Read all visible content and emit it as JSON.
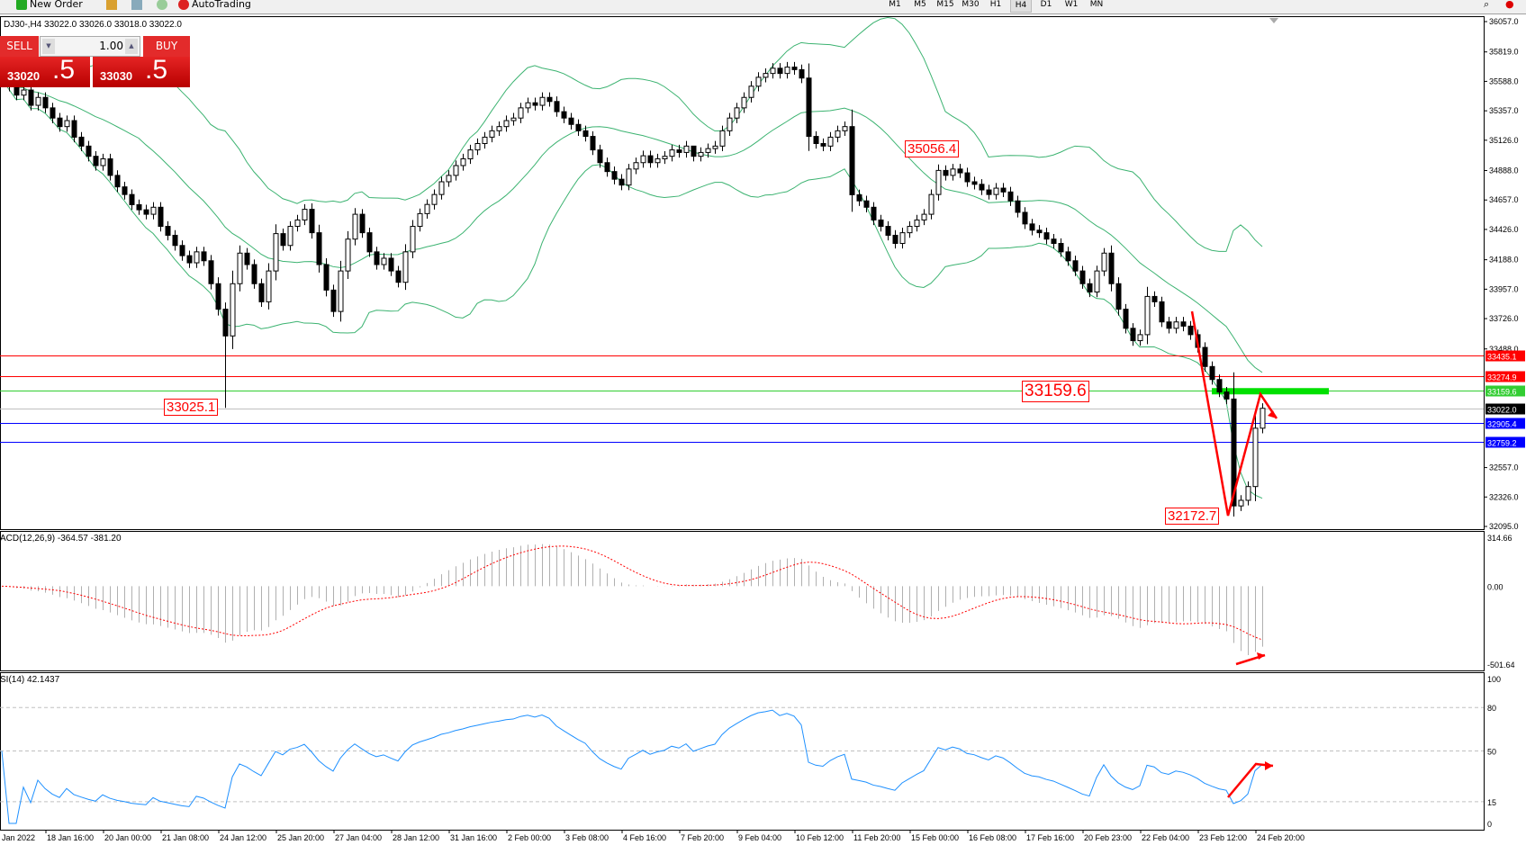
{
  "toolbar": {
    "new_order": "New Order",
    "autotrading": "AutoTrading",
    "timeframes": [
      "M1",
      "M5",
      "M15",
      "M30",
      "H1",
      "H4",
      "D1",
      "W1",
      "MN"
    ],
    "active_timeframe": "H4"
  },
  "symbol_info": "DJ30-,H4  33022.0 33026.0 33018.0 33022.0",
  "one_click": {
    "sell": "SELL",
    "buy": "BUY",
    "volume": "1.00",
    "sell_price_small": "33020",
    "sell_price_big": ".5",
    "buy_price_small": "33030",
    "buy_price_big": ".5"
  },
  "colors": {
    "bands": "#3cb371",
    "bull": "#ffffff",
    "bear": "#000000",
    "macd_hist": "#b0b0b0",
    "macd_signal": "#ff0000",
    "rsi": "#1e90ff",
    "annotation": "#ff0000"
  },
  "price_axis": [
    "36057.0",
    "35819.0",
    "35588.0",
    "35357.0",
    "35126.0",
    "34888.0",
    "34657.0",
    "34426.0",
    "34188.0",
    "33957.0",
    "33726.0",
    "33488.0",
    "32557.0",
    "32326.0",
    "32095.0"
  ],
  "price_lines": [
    {
      "price": "33435.1",
      "color": "#ff0000"
    },
    {
      "price": "33274.9",
      "color": "#ff0000"
    },
    {
      "price": "33159.6",
      "color": "#32cd32"
    },
    {
      "price": "33022.0",
      "color": "#000000",
      "line": "#c0c0c0"
    },
    {
      "price": "32905.4",
      "color": "#0000ff"
    },
    {
      "price": "32759.2",
      "color": "#0000ff"
    }
  ],
  "annotations": {
    "low_jan": "33025.1",
    "high_feb": "35056.4",
    "level": "33159.6",
    "low_feb": "32172.7"
  },
  "macd": {
    "label": "ACD(12,26,9) -364.57 -381.20",
    "axis": [
      "314.66",
      "0.00",
      "-501.64"
    ]
  },
  "rsi": {
    "label": "SI(14) 42.1437",
    "axis": [
      "100",
      "80",
      "50",
      "15",
      "0"
    ]
  },
  "time_axis": [
    "Jan 2022",
    "18 Jan 16:00",
    "20 Jan 00:00",
    "21 Jan 08:00",
    "24 Jan 12:00",
    "25 Jan 20:00",
    "27 Jan 04:00",
    "28 Jan 12:00",
    "31 Jan 16:00",
    "2 Feb 00:00",
    "3 Feb 08:00",
    "4 Feb 16:00",
    "7 Feb 20:00",
    "9 Feb 04:00",
    "10 Feb 12:00",
    "11 Feb 20:00",
    "15 Feb 00:00",
    "16 Feb 08:00",
    "17 Feb 16:00",
    "20 Feb 23:00",
    "22 Feb 04:00",
    "23 Feb 12:00",
    "24 Feb 20:00"
  ],
  "chart_data": {
    "type": "candlestick",
    "symbol": "DJ30-",
    "timeframe": "H4",
    "ylim": [
      32095,
      36057
    ],
    "closes": [
      35600,
      35550,
      35480,
      35520,
      35400,
      35462,
      35380,
      35300,
      35233,
      35280,
      35150,
      35080,
      35000,
      34927,
      34980,
      34850,
      34760,
      34700,
      34620,
      34580,
      34545,
      34600,
      34450,
      34380,
      34300,
      34220,
      34164,
      34250,
      34180,
      34000,
      33800,
      33590,
      34000,
      34240,
      34150,
      34000,
      33858,
      34100,
      34393,
      34300,
      34450,
      34500,
      34584,
      34400,
      34150,
      33950,
      33782,
      34100,
      34350,
      34545,
      34400,
      34250,
      34150,
      34200,
      34100,
      34011,
      34250,
      34450,
      34550,
      34622,
      34700,
      34800,
      34850,
      34927,
      34980,
      35050,
      35100,
      35150,
      35200,
      35233,
      35280,
      35300,
      35380,
      35420,
      35400,
      35462,
      35430,
      35350,
      35300,
      35250,
      35200,
      35156,
      35050,
      34950,
      34880,
      34820,
      34774,
      34900,
      34950,
      35004,
      34950,
      34980,
      35000,
      35050,
      35030,
      35080,
      35000,
      35030,
      35060,
      35080,
      35200,
      35300,
      35380,
      35462,
      35550,
      35620,
      35650,
      35691,
      35650,
      35700,
      35680,
      35614,
      35156,
      35100,
      35080,
      35150,
      35200,
      35233,
      34698,
      34650,
      34600,
      34500,
      34450,
      34380,
      34316,
      34400,
      34450,
      34500,
      34545,
      34700,
      34889,
      34850,
      34900,
      34870,
      34800,
      34780,
      34736,
      34700,
      34750,
      34720,
      34650,
      34560,
      34469,
      34420,
      34400,
      34350,
      34316,
      34250,
      34180,
      34100,
      34000,
      33935,
      34100,
      34240,
      34000,
      33800,
      33650,
      33553,
      33600,
      33900,
      33858,
      33700,
      33650,
      33700,
      33667,
      33600,
      33500,
      33350,
      33248,
      33150,
      33095,
      32256,
      32300,
      32408,
      32866,
      33022
    ]
  }
}
